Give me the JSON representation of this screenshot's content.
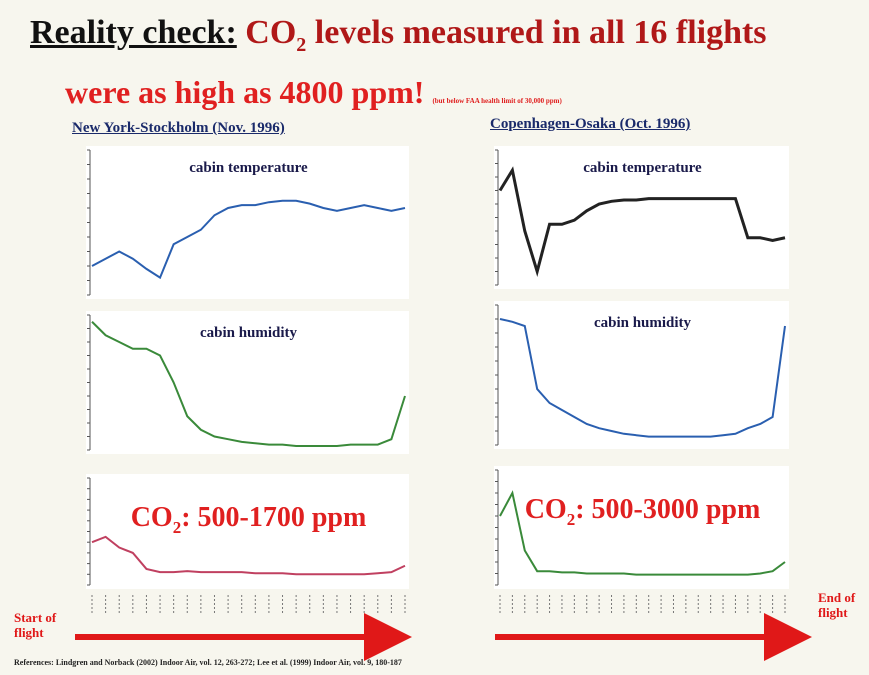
{
  "slide": {
    "title_lead": "Reality check:",
    "title_co": "CO",
    "title_sub": "2",
    "title_rest": " levels measured in all 16 flights",
    "title_line2": "were as high as 4800 ppm!",
    "title_note": "(but below FAA health limit of 30,000 ppm)",
    "left_header": "New York-Stockholm (Nov. 1996)",
    "right_header": "Copenhagen-Osaka (Oct. 1996)",
    "panels": [
      {
        "title": "cabin temperature",
        "values": [
          20,
          25,
          30,
          25,
          18,
          12,
          35,
          40,
          45,
          55,
          60,
          62,
          62,
          64,
          65,
          65,
          63,
          60,
          58,
          60,
          62,
          60,
          58,
          60
        ]
      },
      {
        "title": "cabin humidity",
        "values": [
          95,
          85,
          80,
          75,
          75,
          70,
          50,
          25,
          15,
          10,
          8,
          6,
          5,
          4,
          4,
          3,
          3,
          3,
          3,
          4,
          4,
          4,
          8,
          40
        ]
      },
      {
        "label_co": "CO",
        "label_sub": "2",
        "label_rest": ": 500-1700 ppm",
        "values": [
          40,
          45,
          35,
          30,
          15,
          12,
          12,
          13,
          12,
          12,
          12,
          12,
          11,
          11,
          11,
          10,
          10,
          10,
          10,
          10,
          10,
          11,
          12,
          18
        ]
      },
      {
        "title": "cabin temperature",
        "values": [
          70,
          85,
          40,
          10,
          45,
          45,
          48,
          55,
          60,
          62,
          63,
          63,
          64,
          64,
          64,
          64,
          64,
          64,
          64,
          64,
          35,
          35,
          33,
          35
        ]
      },
      {
        "title": "cabin humidity",
        "values": [
          90,
          88,
          85,
          40,
          30,
          25,
          20,
          15,
          12,
          10,
          8,
          7,
          6,
          6,
          6,
          6,
          6,
          6,
          7,
          8,
          12,
          15,
          20,
          85
        ]
      },
      {
        "label_co": "CO",
        "label_sub": "2",
        "label_rest": ": 500-3000 ppm",
        "values": [
          60,
          80,
          30,
          12,
          12,
          11,
          11,
          10,
          10,
          10,
          10,
          9,
          9,
          9,
          9,
          9,
          9,
          9,
          9,
          9,
          9,
          10,
          12,
          20
        ]
      }
    ],
    "start_label": "Start of flight",
    "end_label": "End of flight",
    "reference": "References: Lindgren and Norback (2002) Indoor Air, vol. 12, 263-272; Lee et al. (1999) Indoor Air, vol. 9, 180-187"
  }
}
